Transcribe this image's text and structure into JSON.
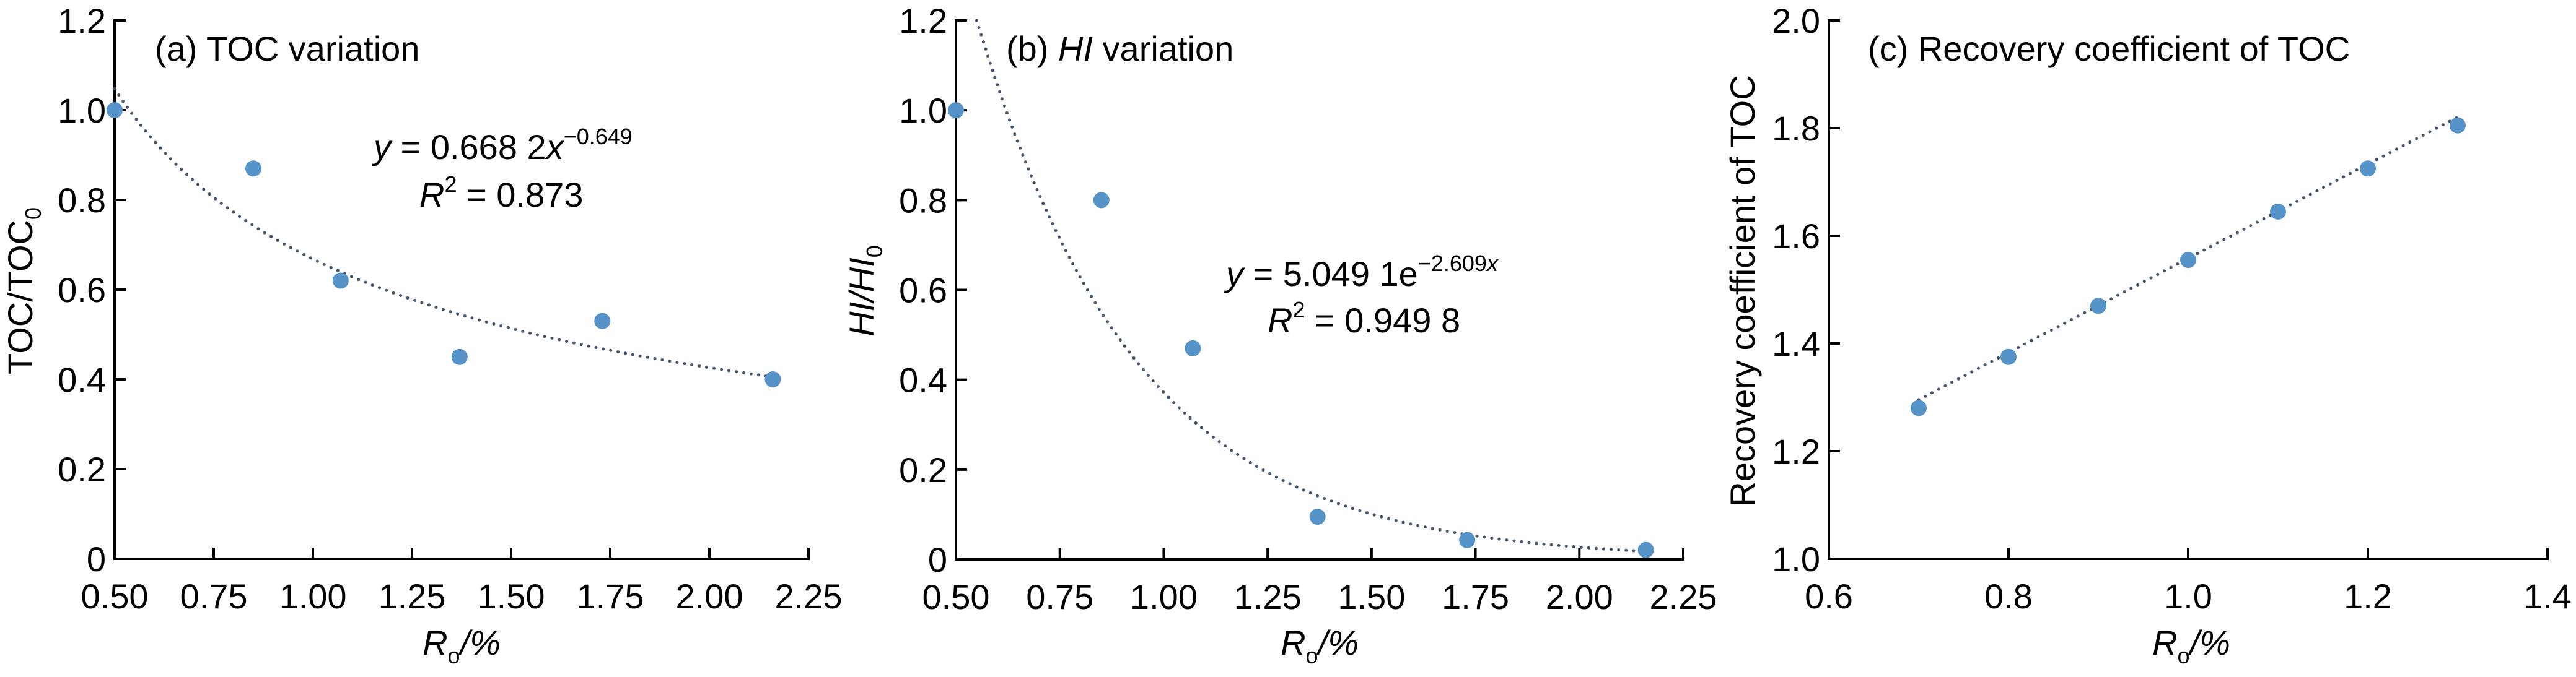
{
  "colors": {
    "point": "#5593c8",
    "trend": "#44546a",
    "axis": "#000000"
  },
  "chart_data": [
    {
      "type": "scatter",
      "title_prefix": "(a) ",
      "title": "TOC variation",
      "xlabel": {
        "main": "R",
        "sub": "o",
        "tail": "/%"
      },
      "ylabel": {
        "main": "TOC/TOC",
        "sub": "0"
      },
      "xlim": [
        0.5,
        2.25
      ],
      "ylim": [
        0,
        1.2
      ],
      "xticks": [
        0.5,
        0.75,
        1.0,
        1.25,
        1.5,
        1.75,
        2.0,
        2.25
      ],
      "xtick_labels": [
        "0.50",
        "0.75",
        "1.00",
        "1.25",
        "1.50",
        "1.75",
        "2.00",
        "2.25"
      ],
      "yticks": [
        0,
        0.2,
        0.4,
        0.6,
        0.8,
        1.0,
        1.2
      ],
      "ytick_labels": [
        "0",
        "0.2",
        "0.4",
        "0.6",
        "0.8",
        "1.0",
        "1.2"
      ],
      "points": {
        "x": [
          0.5,
          0.85,
          1.07,
          1.37,
          1.73,
          2.16
        ],
        "y": [
          1.0,
          0.87,
          0.62,
          0.45,
          0.53,
          0.4
        ]
      },
      "trendline": {
        "kind": "power",
        "a": 0.6682,
        "b": -0.649,
        "x_range": [
          0.5,
          2.16
        ]
      },
      "equation": {
        "var": "y",
        "text": " = 0.668 2",
        "var2": "x",
        "exp": "−0.649"
      },
      "r2": {
        "var": "R",
        "sup": "2",
        "text": " = 0.873"
      }
    },
    {
      "type": "scatter",
      "title_prefix": "(b) ",
      "title_italic": "HI",
      "title": " variation",
      "xlabel": {
        "main": "R",
        "sub": "o",
        "tail": "/%"
      },
      "ylabel": {
        "main": "HI/HI",
        "sub": "0"
      },
      "xlim": [
        0.5,
        2.25
      ],
      "ylim": [
        0,
        1.2
      ],
      "xticks": [
        0.5,
        0.75,
        1.0,
        1.25,
        1.5,
        1.75,
        2.0,
        2.25
      ],
      "xtick_labels": [
        "0.50",
        "0.75",
        "1.00",
        "1.25",
        "1.50",
        "1.75",
        "2.00",
        "2.25"
      ],
      "yticks": [
        0,
        0.2,
        0.4,
        0.6,
        0.8,
        1.0,
        1.2
      ],
      "ytick_labels": [
        "0",
        "0.2",
        "0.4",
        "0.6",
        "0.8",
        "1.0",
        "1.2"
      ],
      "points": {
        "x": [
          0.5,
          0.85,
          1.07,
          1.37,
          1.73,
          2.16
        ],
        "y": [
          1.0,
          0.8,
          0.47,
          0.095,
          0.043,
          0.021
        ]
      },
      "trendline": {
        "kind": "exponential",
        "a": 5.0491,
        "b": -2.609,
        "x_range": [
          0.55,
          2.16
        ]
      },
      "equation": {
        "var": "y",
        "text": " = 5.049 1e",
        "exp": "−2.609",
        "exp_var": "x"
      },
      "r2": {
        "var": "R",
        "sup": "2",
        "text": " = 0.949 8"
      }
    },
    {
      "type": "scatter",
      "title_prefix": "(c) ",
      "title": "Recovery coefficient of TOC",
      "xlabel": {
        "main": "R",
        "sub": "o",
        "tail": "/%"
      },
      "ylabel": {
        "main": "Recovery coefficient of TOC"
      },
      "xlim": [
        0.6,
        1.4
      ],
      "ylim": [
        1.0,
        2.0
      ],
      "xticks": [
        0.6,
        0.8,
        1.0,
        1.2,
        1.4
      ],
      "xtick_labels": [
        "0.6",
        "0.8",
        "1.0",
        "1.2",
        "1.4"
      ],
      "yticks": [
        1.0,
        1.2,
        1.4,
        1.6,
        1.8,
        2.0
      ],
      "ytick_labels": [
        "1.0",
        "1.2",
        "1.4",
        "1.6",
        "1.8",
        "2.0"
      ],
      "points": {
        "x": [
          0.7,
          0.8,
          0.9,
          1.0,
          1.1,
          1.2,
          1.3
        ],
        "y": [
          1.28,
          1.375,
          1.47,
          1.555,
          1.645,
          1.725,
          1.805
        ]
      },
      "trendline": {
        "kind": "linear",
        "a": 0.875,
        "b": 0.683,
        "x_range": [
          0.7,
          1.3
        ]
      }
    }
  ]
}
